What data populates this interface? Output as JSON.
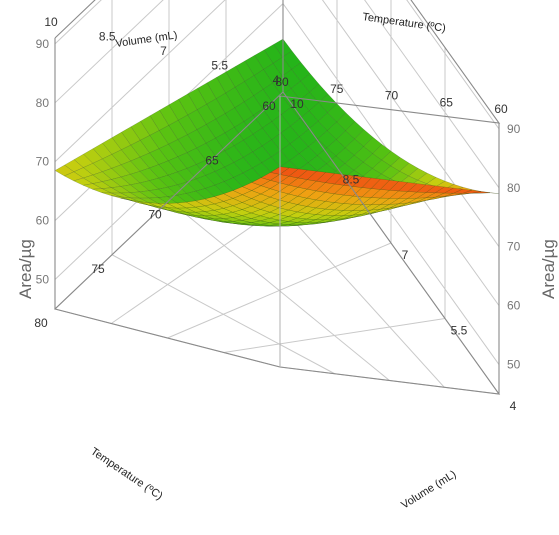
{
  "chart_data": {
    "type": "surface",
    "title": "",
    "z_axis_label": "Area/µg",
    "volume_axis_label": "Volume (mL)",
    "temperature_axis_label": "Temperature (ºC)",
    "volume_ticks": [
      "10",
      "8.5",
      "7",
      "5.5",
      "4"
    ],
    "temperature_ticks": [
      "80",
      "75",
      "70",
      "65",
      "60"
    ],
    "z_ticks": [
      "50",
      "60",
      "70",
      "80",
      "90"
    ],
    "volume_range": [
      4,
      10
    ],
    "temperature_range": [
      60,
      80
    ],
    "z_range": [
      45,
      91
    ],
    "grid": true,
    "colormap": [
      "#22b31a",
      "#5cc312",
      "#c4cf10",
      "#f0a012",
      "#ef3a12"
    ],
    "corner_values": [
      {
        "volume": 10,
        "temperature": 80,
        "area": 68.5
      },
      {
        "volume": 10,
        "temperature": 60,
        "area": 54
      },
      {
        "volume": 4,
        "temperature": 80,
        "area": 79
      },
      {
        "volume": 4,
        "temperature": 60,
        "area": 79
      },
      {
        "volume": 7,
        "temperature": 70,
        "area": 57
      }
    ]
  }
}
